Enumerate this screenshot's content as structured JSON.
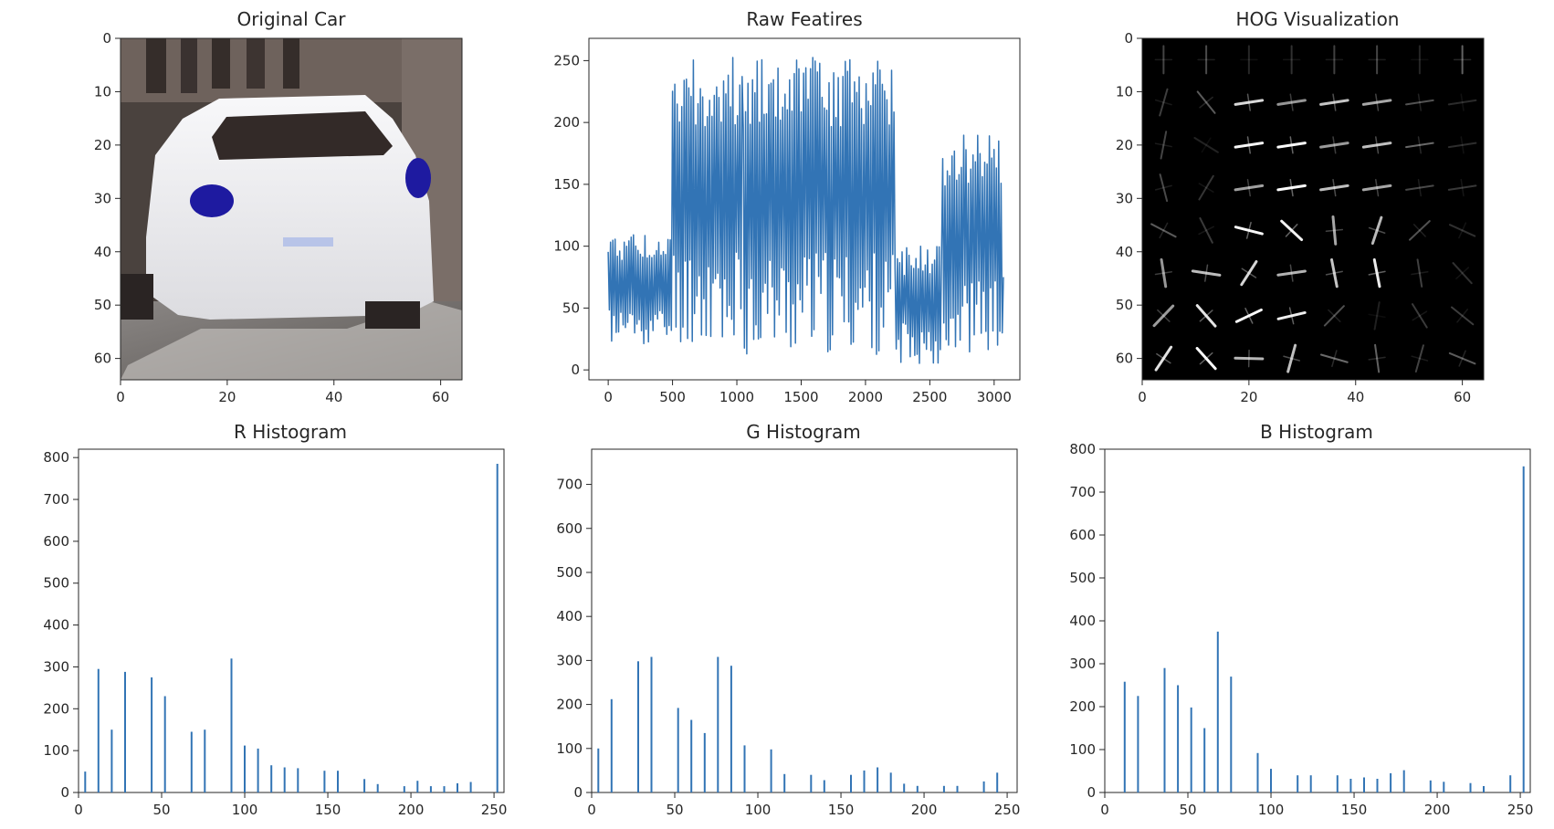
{
  "panels": {
    "original": {
      "title": "Original Car"
    },
    "raw": {
      "title": "Raw Featires"
    },
    "hog": {
      "title": "HOG Visualization"
    },
    "r_hist": {
      "title": "R Histogram"
    },
    "g_hist": {
      "title": "G Histogram"
    },
    "b_hist": {
      "title": "B Histogram"
    }
  },
  "colors": {
    "series": "#3274b5",
    "axes": "#262626"
  },
  "chart_data": [
    {
      "type": "image",
      "title": "Original Car",
      "xlim": [
        0,
        64
      ],
      "ylim": [
        64,
        0
      ],
      "xticks": [
        0,
        20,
        40,
        60
      ],
      "yticks": [
        0,
        10,
        20,
        30,
        40,
        50,
        60
      ]
    },
    {
      "type": "line",
      "title": "Raw Featires",
      "xlim": [
        -150,
        3200
      ],
      "ylim": [
        -8,
        268
      ],
      "xticks": [
        0,
        500,
        1000,
        1500,
        2000,
        2500,
        3000
      ],
      "yticks": [
        0,
        50,
        100,
        150,
        200,
        250
      ],
      "segments": [
        {
          "x": [
            0,
            500
          ],
          "low": 20,
          "high": 110
        },
        {
          "x": [
            500,
            1050
          ],
          "low": 20,
          "high": 255
        },
        {
          "x": [
            1050,
            2230
          ],
          "low": 12,
          "high": 255
        },
        {
          "x": [
            2230,
            2600
          ],
          "low": 5,
          "high": 100
        },
        {
          "x": [
            2600,
            3072
          ],
          "low": 12,
          "high": 190
        }
      ]
    },
    {
      "type": "heatmap",
      "title": "HOG Visualization",
      "xlim": [
        0,
        64
      ],
      "ylim": [
        64,
        0
      ],
      "xticks": [
        0,
        20,
        40,
        60
      ],
      "yticks": [
        0,
        10,
        20,
        30,
        40,
        50,
        60
      ]
    },
    {
      "type": "bar",
      "title": "R Histogram",
      "xlim": [
        0,
        256
      ],
      "ylim": [
        0,
        820
      ],
      "xticks": [
        0,
        50,
        100,
        150,
        200,
        250
      ],
      "yticks": [
        0,
        100,
        200,
        300,
        400,
        500,
        600,
        700,
        800
      ],
      "x": [
        4,
        12,
        20,
        28,
        44,
        52,
        68,
        76,
        92,
        100,
        108,
        116,
        124,
        132,
        148,
        156,
        172,
        180,
        196,
        204,
        212,
        220,
        228,
        236,
        252
      ],
      "values": [
        50,
        295,
        150,
        288,
        275,
        230,
        145,
        150,
        320,
        112,
        105,
        65,
        60,
        58,
        52,
        52,
        32,
        20,
        15,
        28,
        15,
        15,
        22,
        25,
        785
      ]
    },
    {
      "type": "bar",
      "title": "G Histogram",
      "xlim": [
        0,
        256
      ],
      "ylim": [
        0,
        780
      ],
      "xticks": [
        0,
        50,
        100,
        150,
        200,
        250
      ],
      "yticks": [
        0,
        100,
        200,
        300,
        400,
        500,
        600,
        700
      ],
      "x": [
        4,
        12,
        28,
        36,
        52,
        60,
        68,
        76,
        84,
        92,
        108,
        116,
        132,
        140,
        156,
        164,
        172,
        180,
        188,
        196,
        212,
        220,
        236,
        244
      ],
      "values": [
        100,
        212,
        298,
        308,
        192,
        165,
        135,
        308,
        288,
        107,
        98,
        42,
        40,
        28,
        40,
        50,
        57,
        45,
        20,
        15,
        15,
        15,
        25,
        45
      ]
    },
    {
      "type": "bar",
      "title": "B Histogram",
      "xlim": [
        0,
        256
      ],
      "ylim": [
        0,
        800
      ],
      "xticks": [
        0,
        50,
        100,
        150,
        200,
        250
      ],
      "yticks": [
        0,
        100,
        200,
        300,
        400,
        500,
        600,
        700,
        800
      ],
      "x": [
        12,
        20,
        36,
        44,
        52,
        60,
        68,
        76,
        92,
        100,
        116,
        124,
        140,
        148,
        156,
        164,
        172,
        180,
        196,
        204,
        220,
        228,
        244,
        252
      ],
      "values": [
        258,
        225,
        290,
        250,
        198,
        150,
        375,
        270,
        92,
        55,
        40,
        40,
        40,
        32,
        35,
        32,
        45,
        52,
        28,
        25,
        22,
        15,
        40,
        760
      ]
    }
  ]
}
